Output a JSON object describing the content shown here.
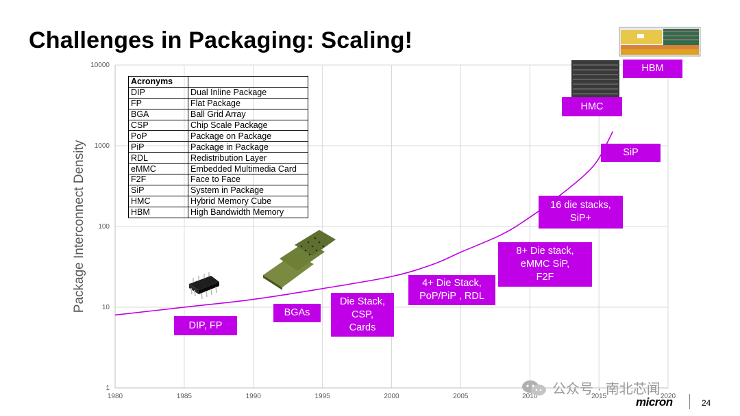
{
  "slide": {
    "title": "Challenges in Packaging: Scaling!",
    "page_number": "24",
    "brand": "micron",
    "watermark": "公众号 · 南北芯闻"
  },
  "acronyms": {
    "header": "Acronyms",
    "rows": [
      {
        "abbr": "DIP",
        "full": "Dual Inline Package"
      },
      {
        "abbr": "FP",
        "full": "Flat Package"
      },
      {
        "abbr": "BGA",
        "full": "Ball Grid Array"
      },
      {
        "abbr": "CSP",
        "full": "Chip Scale Package"
      },
      {
        "abbr": "PoP",
        "full": "Package on Package"
      },
      {
        "abbr": "PiP",
        "full": "Package in Package"
      },
      {
        "abbr": "RDL",
        "full": "Redistribution Layer"
      },
      {
        "abbr": "eMMC",
        "full": "Embedded Multimedia Card"
      },
      {
        "abbr": "F2F",
        "full": "Face to Face"
      },
      {
        "abbr": "SiP",
        "full": "System in Package"
      },
      {
        "abbr": "HMC",
        "full": "Hybrid Memory Cube"
      },
      {
        "abbr": "HBM",
        "full": "High Bandwidth Memory"
      }
    ]
  },
  "labels": {
    "dip_fp": "DIP, FP",
    "bgas": "BGAs",
    "die_stack": "Die Stack,\nCSP,\nCards",
    "four_plus": "4+ Die Stack,\nPoP/PiP , RDL",
    "eight_plus": "8+ Die stack,\neMMC SiP,\nF2F",
    "sixteen": "16 die stacks,\nSiP+",
    "sip": "SiP",
    "hmc": "HMC",
    "hbm": "HBM"
  },
  "colors": {
    "accent": "#c000e6",
    "curve": "#c000e6",
    "grid": "#d9d9d9"
  },
  "chart_data": {
    "type": "line",
    "title": "",
    "xlabel": "",
    "ylabel": "Package Interconnect Density",
    "y_scale": "log",
    "xlim": [
      1980,
      2020
    ],
    "ylim": [
      1,
      10000
    ],
    "x_ticks": [
      "1980",
      "1985",
      "1990",
      "1995",
      "2000",
      "2005",
      "2010",
      "2015",
      "2020"
    ],
    "y_ticks": [
      "1",
      "10",
      "100",
      "1000",
      "10000"
    ],
    "series": [
      {
        "name": "Package Interconnect Density",
        "x": [
          1980,
          1985,
          1990,
          1995,
          2000,
          2003,
          2005,
          2008,
          2010,
          2012,
          2014,
          2015,
          2016
        ],
        "y": [
          8,
          10,
          12.5,
          17,
          24,
          34,
          48,
          80,
          130,
          230,
          440,
          700,
          1500
        ]
      }
    ]
  }
}
